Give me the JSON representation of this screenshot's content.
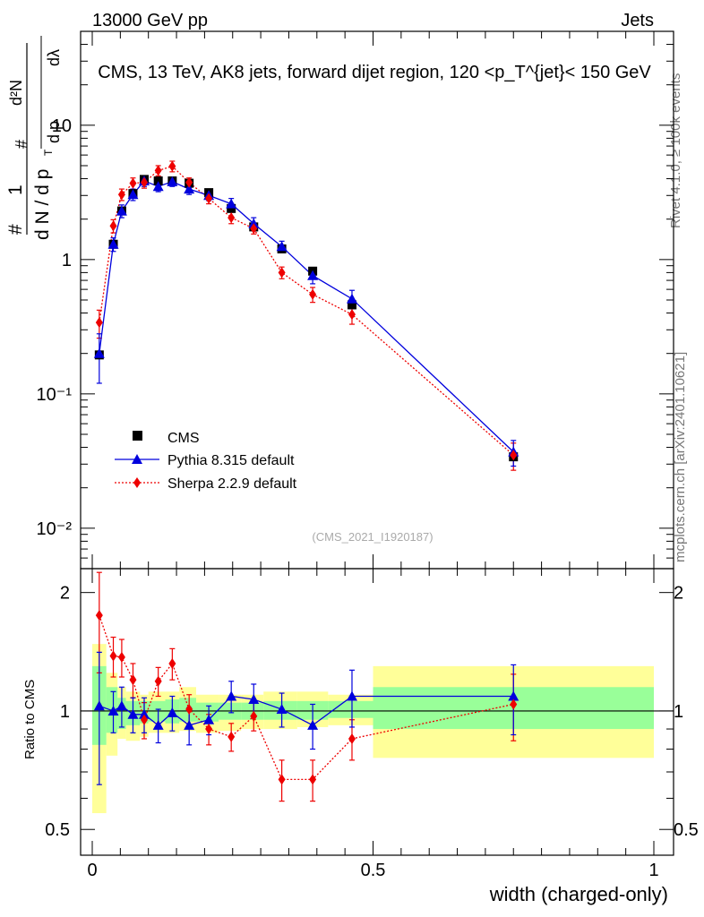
{
  "header": {
    "left": "13000 GeV pp",
    "right": "Jets"
  },
  "side_labels": {
    "rivet": "Rivet 4.1.0, ≥ 100k events",
    "mcplots": "mcplots.cern.ch [arXiv:2401.10621]"
  },
  "watermark": "(CMS_2021_I1920187)",
  "y_axis_label": {
    "hash1": "#",
    "one": "1",
    "dN": "d N / d p",
    "T": "T",
    "hash2": "#",
    "d2N": "d²N",
    "dp": "d p",
    "dl": "dλ"
  },
  "colors": {
    "cms": "#000000",
    "pythia": "#0000dd",
    "sherpa": "#ee0000",
    "band_outer": "#ffff99",
    "band_inner": "#99ff99"
  },
  "chart_data": [
    {
      "type": "scatter",
      "title": "CMS, 13 TeV, AK8 jets, forward dijet region, 120 <p_T^{jet}< 150 GeV",
      "yscale": "log",
      "ylim": [
        0.005,
        50
      ],
      "xlim": [
        -0.02,
        1.0
      ],
      "y_ticks": [
        "10⁻²",
        "10⁻¹",
        "1",
        "10"
      ],
      "legend": [
        "CMS",
        "Pythia 8.315 default",
        "Sherpa 2.2.9 default"
      ],
      "legend_position": "lower-left",
      "series": [
        {
          "name": "CMS",
          "x": [
            0.0125,
            0.0375,
            0.0525,
            0.0725,
            0.0925,
            0.1175,
            0.1425,
            0.1725,
            0.2075,
            0.2475,
            0.2875,
            0.3375,
            0.3925,
            0.4625,
            0.75
          ],
          "y": [
            0.195,
            1.3,
            2.3,
            3.1,
            3.95,
            3.85,
            3.85,
            3.7,
            3.15,
            2.4,
            1.75,
            1.2,
            0.82,
            0.46,
            0.034
          ]
        },
        {
          "name": "Pythia 8.315 default",
          "x": [
            0.0125,
            0.0375,
            0.0525,
            0.0725,
            0.0925,
            0.1175,
            0.1425,
            0.1725,
            0.2075,
            0.2475,
            0.2875,
            0.3375,
            0.3925,
            0.4625,
            0.75
          ],
          "y": [
            0.2,
            1.3,
            2.3,
            3.05,
            3.85,
            3.5,
            3.8,
            3.35,
            3.0,
            2.6,
            1.85,
            1.25,
            0.76,
            0.51,
            0.037
          ],
          "err": [
            0.08,
            0.15,
            0.25,
            0.3,
            0.35,
            0.3,
            0.3,
            0.3,
            0.25,
            0.25,
            0.2,
            0.12,
            0.1,
            0.08,
            0.008
          ]
        },
        {
          "name": "Sherpa 2.2.9 default",
          "x": [
            0.0125,
            0.0375,
            0.0525,
            0.0725,
            0.0925,
            0.1175,
            0.1425,
            0.1725,
            0.2075,
            0.2475,
            0.2875,
            0.3375,
            0.3925,
            0.4625,
            0.75
          ],
          "y": [
            0.34,
            1.78,
            3.05,
            3.7,
            3.75,
            4.6,
            4.95,
            3.75,
            2.85,
            2.05,
            1.7,
            0.8,
            0.55,
            0.39,
            0.035
          ],
          "err": [
            0.08,
            0.2,
            0.3,
            0.35,
            0.35,
            0.4,
            0.45,
            0.3,
            0.25,
            0.2,
            0.15,
            0.08,
            0.07,
            0.06,
            0.008
          ]
        }
      ]
    },
    {
      "type": "scatter",
      "xlabel": "width (charged-only)",
      "ylabel": "Ratio to CMS",
      "yscale": "log",
      "ylim": [
        0.43,
        2.3
      ],
      "y_ticks": [
        "0.5",
        "1",
        "2"
      ],
      "x_ticks": [
        "0",
        "0.5",
        "1"
      ],
      "bands": {
        "edges": [
          0.0,
          0.025,
          0.045,
          0.06,
          0.085,
          0.1,
          0.13,
          0.155,
          0.185,
          0.225,
          0.265,
          0.305,
          0.365,
          0.42,
          0.5,
          1.0
        ],
        "outer_lo": [
          0.55,
          0.77,
          0.85,
          0.84,
          0.86,
          0.88,
          0.88,
          0.89,
          0.88,
          0.89,
          0.9,
          0.9,
          0.91,
          0.92,
          0.76
        ],
        "outer_hi": [
          1.48,
          1.25,
          1.15,
          1.12,
          1.1,
          1.12,
          1.12,
          1.15,
          1.1,
          1.1,
          1.1,
          1.12,
          1.12,
          1.1,
          1.3
        ],
        "inner_lo": [
          0.82,
          0.88,
          0.9,
          0.92,
          0.93,
          0.94,
          0.93,
          0.94,
          0.94,
          0.95,
          0.95,
          0.95,
          0.95,
          0.96,
          0.9
        ],
        "inner_hi": [
          1.3,
          1.15,
          1.08,
          1.06,
          1.06,
          1.06,
          1.07,
          1.08,
          1.05,
          1.05,
          1.05,
          1.06,
          1.06,
          1.06,
          1.15
        ]
      },
      "series": [
        {
          "name": "Pythia 8.315 default",
          "x": [
            0.0125,
            0.0375,
            0.0525,
            0.0725,
            0.0925,
            0.1175,
            0.1425,
            0.1725,
            0.2075,
            0.2475,
            0.2875,
            0.3375,
            0.3925,
            0.4625,
            0.75
          ],
          "y": [
            1.03,
            1.0,
            1.03,
            0.98,
            0.98,
            0.92,
            0.99,
            0.92,
            0.95,
            1.09,
            1.07,
            1.01,
            0.92,
            1.09,
            1.09
          ],
          "err": [
            0.38,
            0.12,
            0.12,
            0.1,
            0.1,
            0.09,
            0.1,
            0.1,
            0.08,
            0.1,
            0.1,
            0.1,
            0.12,
            0.18,
            0.22
          ]
        },
        {
          "name": "Sherpa 2.2.9 default",
          "x": [
            0.0125,
            0.0375,
            0.0525,
            0.0725,
            0.0925,
            0.1175,
            0.1425,
            0.1725,
            0.2075,
            0.2475,
            0.2875,
            0.3375,
            0.3925,
            0.4625,
            0.75
          ],
          "y": [
            1.75,
            1.38,
            1.37,
            1.2,
            0.95,
            1.19,
            1.32,
            1.01,
            0.9,
            0.86,
            0.97,
            0.67,
            0.67,
            0.85,
            1.04
          ],
          "err": [
            0.5,
            0.16,
            0.15,
            0.12,
            0.1,
            0.1,
            0.12,
            0.09,
            0.08,
            0.07,
            0.08,
            0.08,
            0.08,
            0.1,
            0.2
          ]
        }
      ]
    }
  ]
}
